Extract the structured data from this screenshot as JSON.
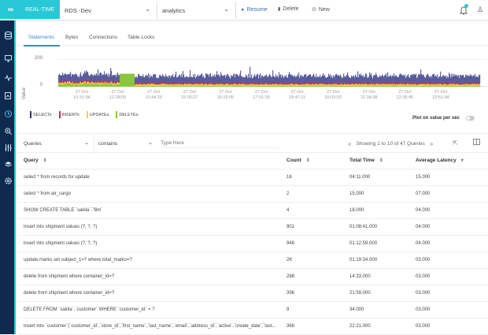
{
  "topbar": {
    "brand_logo": "∞",
    "mode_label": "REAL-TIME",
    "instance_select": "RDS -Dev",
    "database_select": "analytics",
    "resume_label": "Resume",
    "delete_label": "Delete",
    "new_label": "New",
    "resume_icon": "▸",
    "delete_icon": "🗑",
    "new_icon": "⊙",
    "user_icon": "♙",
    "notification_color": "#29c8d6"
  },
  "sidebar": {
    "icons": [
      "database-icon",
      "monitor-icon",
      "pulse-icon",
      "report-icon",
      "clock-icon",
      "zoom-icon",
      "sliders-icon",
      "layers-icon",
      "settings-icon"
    ],
    "active_index": 4
  },
  "tabs": [
    "Statements",
    "Bytes",
    "Connections",
    "Table Locks"
  ],
  "active_tab": 0,
  "chart_data": {
    "type": "area",
    "stacked": true,
    "ylabel": "Value",
    "yticks": [
      "200",
      "0"
    ],
    "ylim": [
      0,
      200
    ],
    "x": [
      "27 Oct 10:31:54",
      "27 Oct 12:28:05",
      "27 Oct 13:44:29",
      "27 Oct 15:00:27",
      "27 Oct 16:15:05",
      "27 Oct 17:31:39",
      "27 Oct 18:47:11",
      "27 Oct 20:03:02",
      "27 Oct 21:18:38",
      "27 Oct 22:35:45",
      "27 Oct 23:51:04"
    ],
    "x_tick_dates": [
      "27 Oct",
      "27 Oct",
      "27 Oct",
      "27 Oct",
      "27 Oct",
      "27 Oct",
      "27 Oct",
      "27 Oct",
      "27 Oct",
      "27 Oct",
      "27 Oct"
    ],
    "x_tick_times": [
      "10:31:54",
      "12:28:05",
      "13:44:29",
      "15:00:27",
      "16:15:05",
      "17:31:39",
      "18:47:11",
      "20:03:02",
      "21:18:38",
      "22:35:45",
      "23:51:04"
    ],
    "series": [
      {
        "name": "SELECTs",
        "color": "#2b2f7f",
        "approx_range": [
          20,
          60
        ]
      },
      {
        "name": "INSERTs",
        "color": "#b8325a",
        "approx_range": [
          5,
          15
        ]
      },
      {
        "name": "UPDATEs",
        "color": "#f2d43a",
        "approx_range": [
          5,
          15
        ]
      },
      {
        "name": "DELETEs",
        "color": "#8cc63f",
        "approx_range": [
          5,
          20
        ]
      }
    ],
    "annotation": "solid SELECT block ~100 between 12:00 and 12:28",
    "legend_position": "bottom-left",
    "grid": true
  },
  "legend": [
    {
      "label": "SELECTs",
      "color": "#2b2f7f"
    },
    {
      "label": "INSERTs",
      "color": "#b8325a"
    },
    {
      "label": "UPDATEs",
      "color": "#f2d43a"
    },
    {
      "label": "DELETEs",
      "color": "#8cc63f"
    }
  ],
  "toggle": {
    "label": "Plot on value per sec",
    "on": false
  },
  "filter": {
    "field": "Queries",
    "operator": "contains",
    "placeholder": "Type Here",
    "value": ""
  },
  "pager": {
    "text": "Showing 1 to 10 of 47 Queries",
    "prev": "«",
    "next": "»"
  },
  "table": {
    "headers": [
      "Query",
      "Count",
      "Total Time",
      "Average Latency"
    ],
    "sort_icons": [
      "⇕",
      "⇕",
      "⇕",
      "▾"
    ],
    "rows": [
      [
        "select * from records for update",
        "16",
        "04:11.000",
        "15.000"
      ],
      [
        "select * from air_cargo",
        "2",
        "15.000",
        "07.000"
      ],
      [
        "SHOW CREATE TABLE `sakila`.`film`",
        "4",
        "18.000",
        "04.000"
      ],
      [
        "insert into shipment values (?, ?, ?)",
        "901",
        "01:08:41.000",
        "04.000"
      ],
      [
        "insert into shipment values (?, ?, ?)",
        "948",
        "01:12:59.000",
        "04.000"
      ],
      [
        "update marks set subject_1=? where total_marks=?",
        "2K",
        "01:19:34.000",
        "03.000"
      ],
      [
        "delete from shipment where container_id=?",
        "288",
        "14:33.000",
        "03.000"
      ],
      [
        "delete from shipment where container_id=?",
        "396",
        "21:59.000",
        "03.000"
      ],
      [
        "DELETE FROM `sakila`.`customer` WHERE `customer_id` = ?",
        "9",
        "34.000",
        "03.000"
      ],
      [
        "insert into `customer`(`customer_id`,`store_id`,`first_name`,`last_name`,`email`,`address_id`,`active`,`create_date`,`last...",
        "368",
        "22:21.000",
        "03.000"
      ]
    ]
  }
}
